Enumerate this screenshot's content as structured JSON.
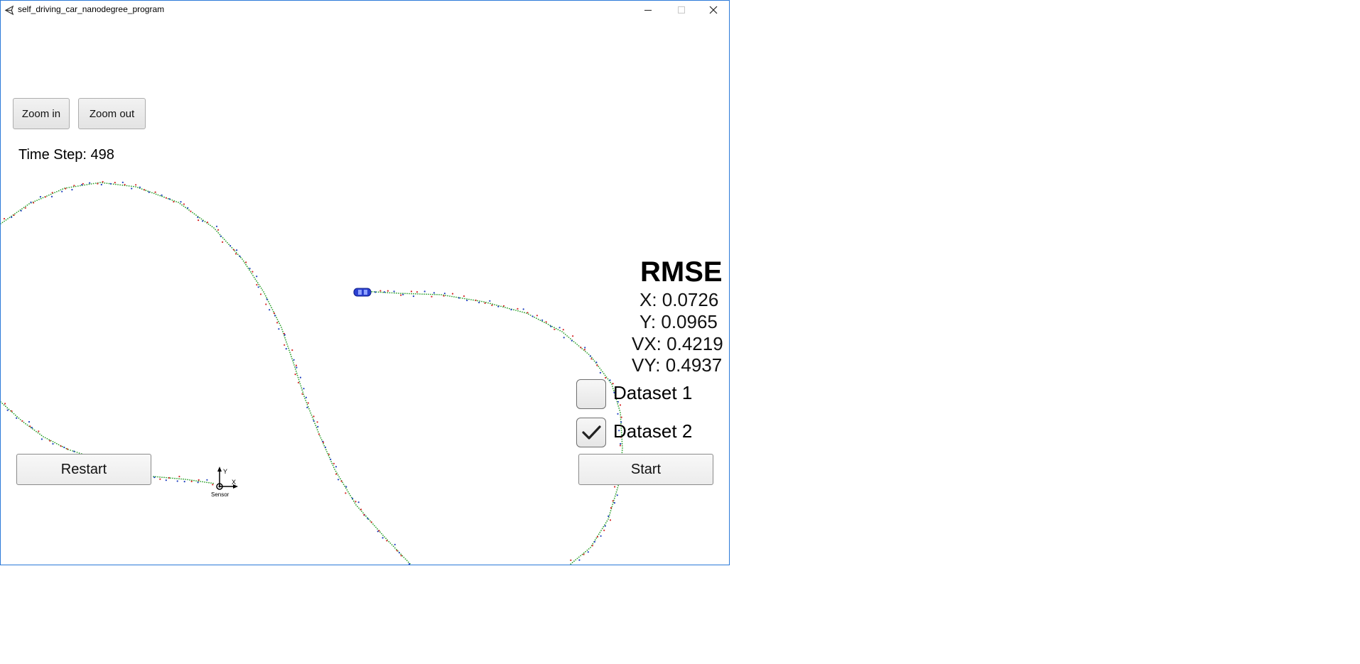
{
  "window": {
    "title": "self_driving_car_nanodegree_program",
    "app_icon": "unity-logo-icon",
    "controls": [
      "minimize-icon",
      "maximize-icon",
      "close-icon"
    ]
  },
  "toolbar": {
    "zoom_in_label": "Zoom in",
    "zoom_out_label": "Zoom out"
  },
  "status": {
    "time_step": "Time Step: 498"
  },
  "rmse": {
    "title": "RMSE",
    "x": "X: 0.0726",
    "y": "Y: 0.0965",
    "vx": "VX: 0.4219",
    "vy": "VY: 0.4937"
  },
  "datasets": [
    {
      "label": "Dataset 1",
      "checked": false
    },
    {
      "label": "Dataset 2",
      "checked": true
    }
  ],
  "buttons": {
    "restart_label": "Restart",
    "start_label": "Start"
  },
  "sensor_axes": {
    "y_label": "Y",
    "x_label": "X",
    "caption": "Sensor"
  },
  "colors": {
    "window_border": "#2b79d8",
    "track_estimate": "#2ca02c",
    "lidar_measurement": "#d62728",
    "radar_measurement": "#1f3fbf",
    "car": "#2a3fd0"
  }
}
